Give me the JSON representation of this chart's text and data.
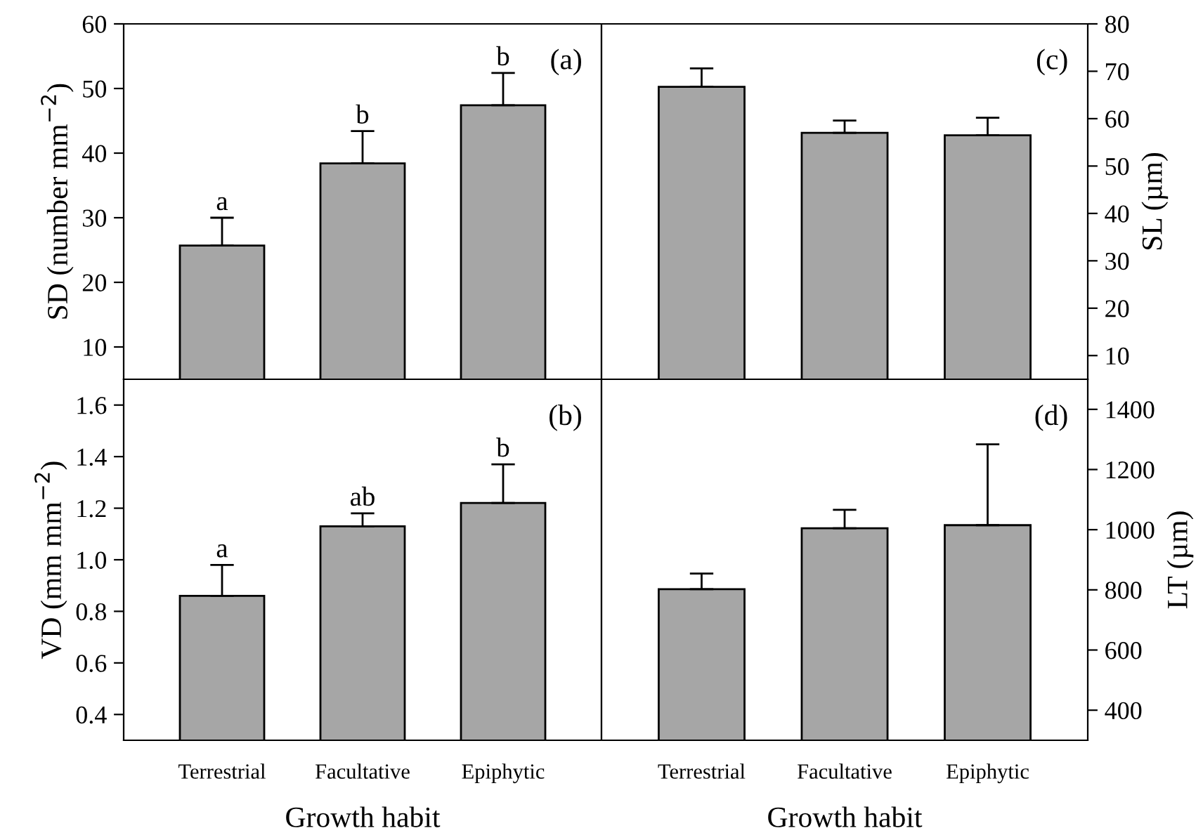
{
  "chart_data": [
    {
      "type": "bar",
      "categories": [
        "Terrestrial",
        "Facultative",
        "Epiphytic"
      ],
      "ylabel": "SD (number mm$^{−2}$)",
      "ylim": [
        5,
        60
      ],
      "yticks": [
        10,
        20,
        30,
        40,
        50,
        60
      ],
      "tick_labels": "y",
      "color": "#a6a6a6",
      "values": [
        25.7,
        38.4,
        47.4
      ],
      "errors": [
        [
          25.7,
          30.0
        ],
        [
          38.4,
          43.4
        ],
        [
          47.4,
          52.4
        ]
      ],
      "annotations": [
        "(a)",
        {
          "text": "a",
          "x": "Terrestrial",
          "y": 30.0
        },
        {
          "text": "b",
          "x": "Facultative",
          "y": 43.4
        },
        {
          "text": "b",
          "x": "Epiphytic",
          "y": 52.4
        }
      ]
    },
    {
      "type": "bar",
      "categories": [
        "Terrestrial",
        "Facultative",
        "Epiphytic"
      ],
      "ylabel": "SL (µm)",
      "ylim": [
        5,
        80
      ],
      "yticks": [
        10,
        20,
        30,
        40,
        50,
        60,
        70,
        80
      ],
      "tick_labels": "y",
      "color": "#a6a6a6",
      "values": [
        66.7,
        57.0,
        56.5
      ],
      "errors": [
        [
          66.7,
          70.6
        ],
        [
          57.0,
          59.6
        ],
        [
          56.5,
          60.2
        ]
      ],
      "annotations": [
        "(c)"
      ]
    },
    {
      "type": "bar",
      "categories": [
        "Terrestrial",
        "Facultative",
        "Epiphytic"
      ],
      "xlabel": "Growth habit",
      "ylabel": "VD (mm mm$^{−2}$)",
      "ylim": [
        0.3,
        1.7
      ],
      "yticks": [
        {
          "value": 0.4,
          "label": "0.4"
        },
        {
          "value": 0.6,
          "label": "0.6"
        },
        {
          "value": 0.8,
          "label": "0.8"
        },
        {
          "value": 1.0,
          "label": "1.0"
        },
        {
          "value": 1.2,
          "label": "1.2"
        },
        {
          "value": 1.4,
          "label": "1.4"
        },
        {
          "value": 1.6,
          "label": "1.6"
        }
      ],
      "color": "#a6a6a6",
      "values": [
        0.86,
        1.13,
        1.22
      ],
      "errors": [
        [
          0.86,
          0.98
        ],
        [
          1.13,
          1.18
        ],
        [
          1.22,
          1.37
        ]
      ],
      "annotations": [
        "(b)",
        {
          "text": "a",
          "x": "Terrestrial",
          "y": 0.98
        },
        {
          "text": "ab",
          "x": "Facultative",
          "y": 1.18
        },
        {
          "text": "b",
          "x": "Epiphytic",
          "y": 1.37
        }
      ]
    },
    {
      "type": "bar",
      "categories": [
        "Terrestrial",
        "Facultative",
        "Epiphytic"
      ],
      "xlabel": "Growth habit",
      "ylabel": "LT (µm)",
      "ylim": [
        300,
        1500
      ],
      "yticks": [
        400,
        600,
        800,
        1000,
        1200,
        1400
      ],
      "color": "#a6a6a6",
      "values": [
        802,
        1005,
        1015
      ],
      "errors": [
        [
          802,
          854
        ],
        [
          1005,
          1066
        ],
        [
          1015,
          1284
        ]
      ],
      "annotations": [
        "(d)"
      ]
    }
  ]
}
